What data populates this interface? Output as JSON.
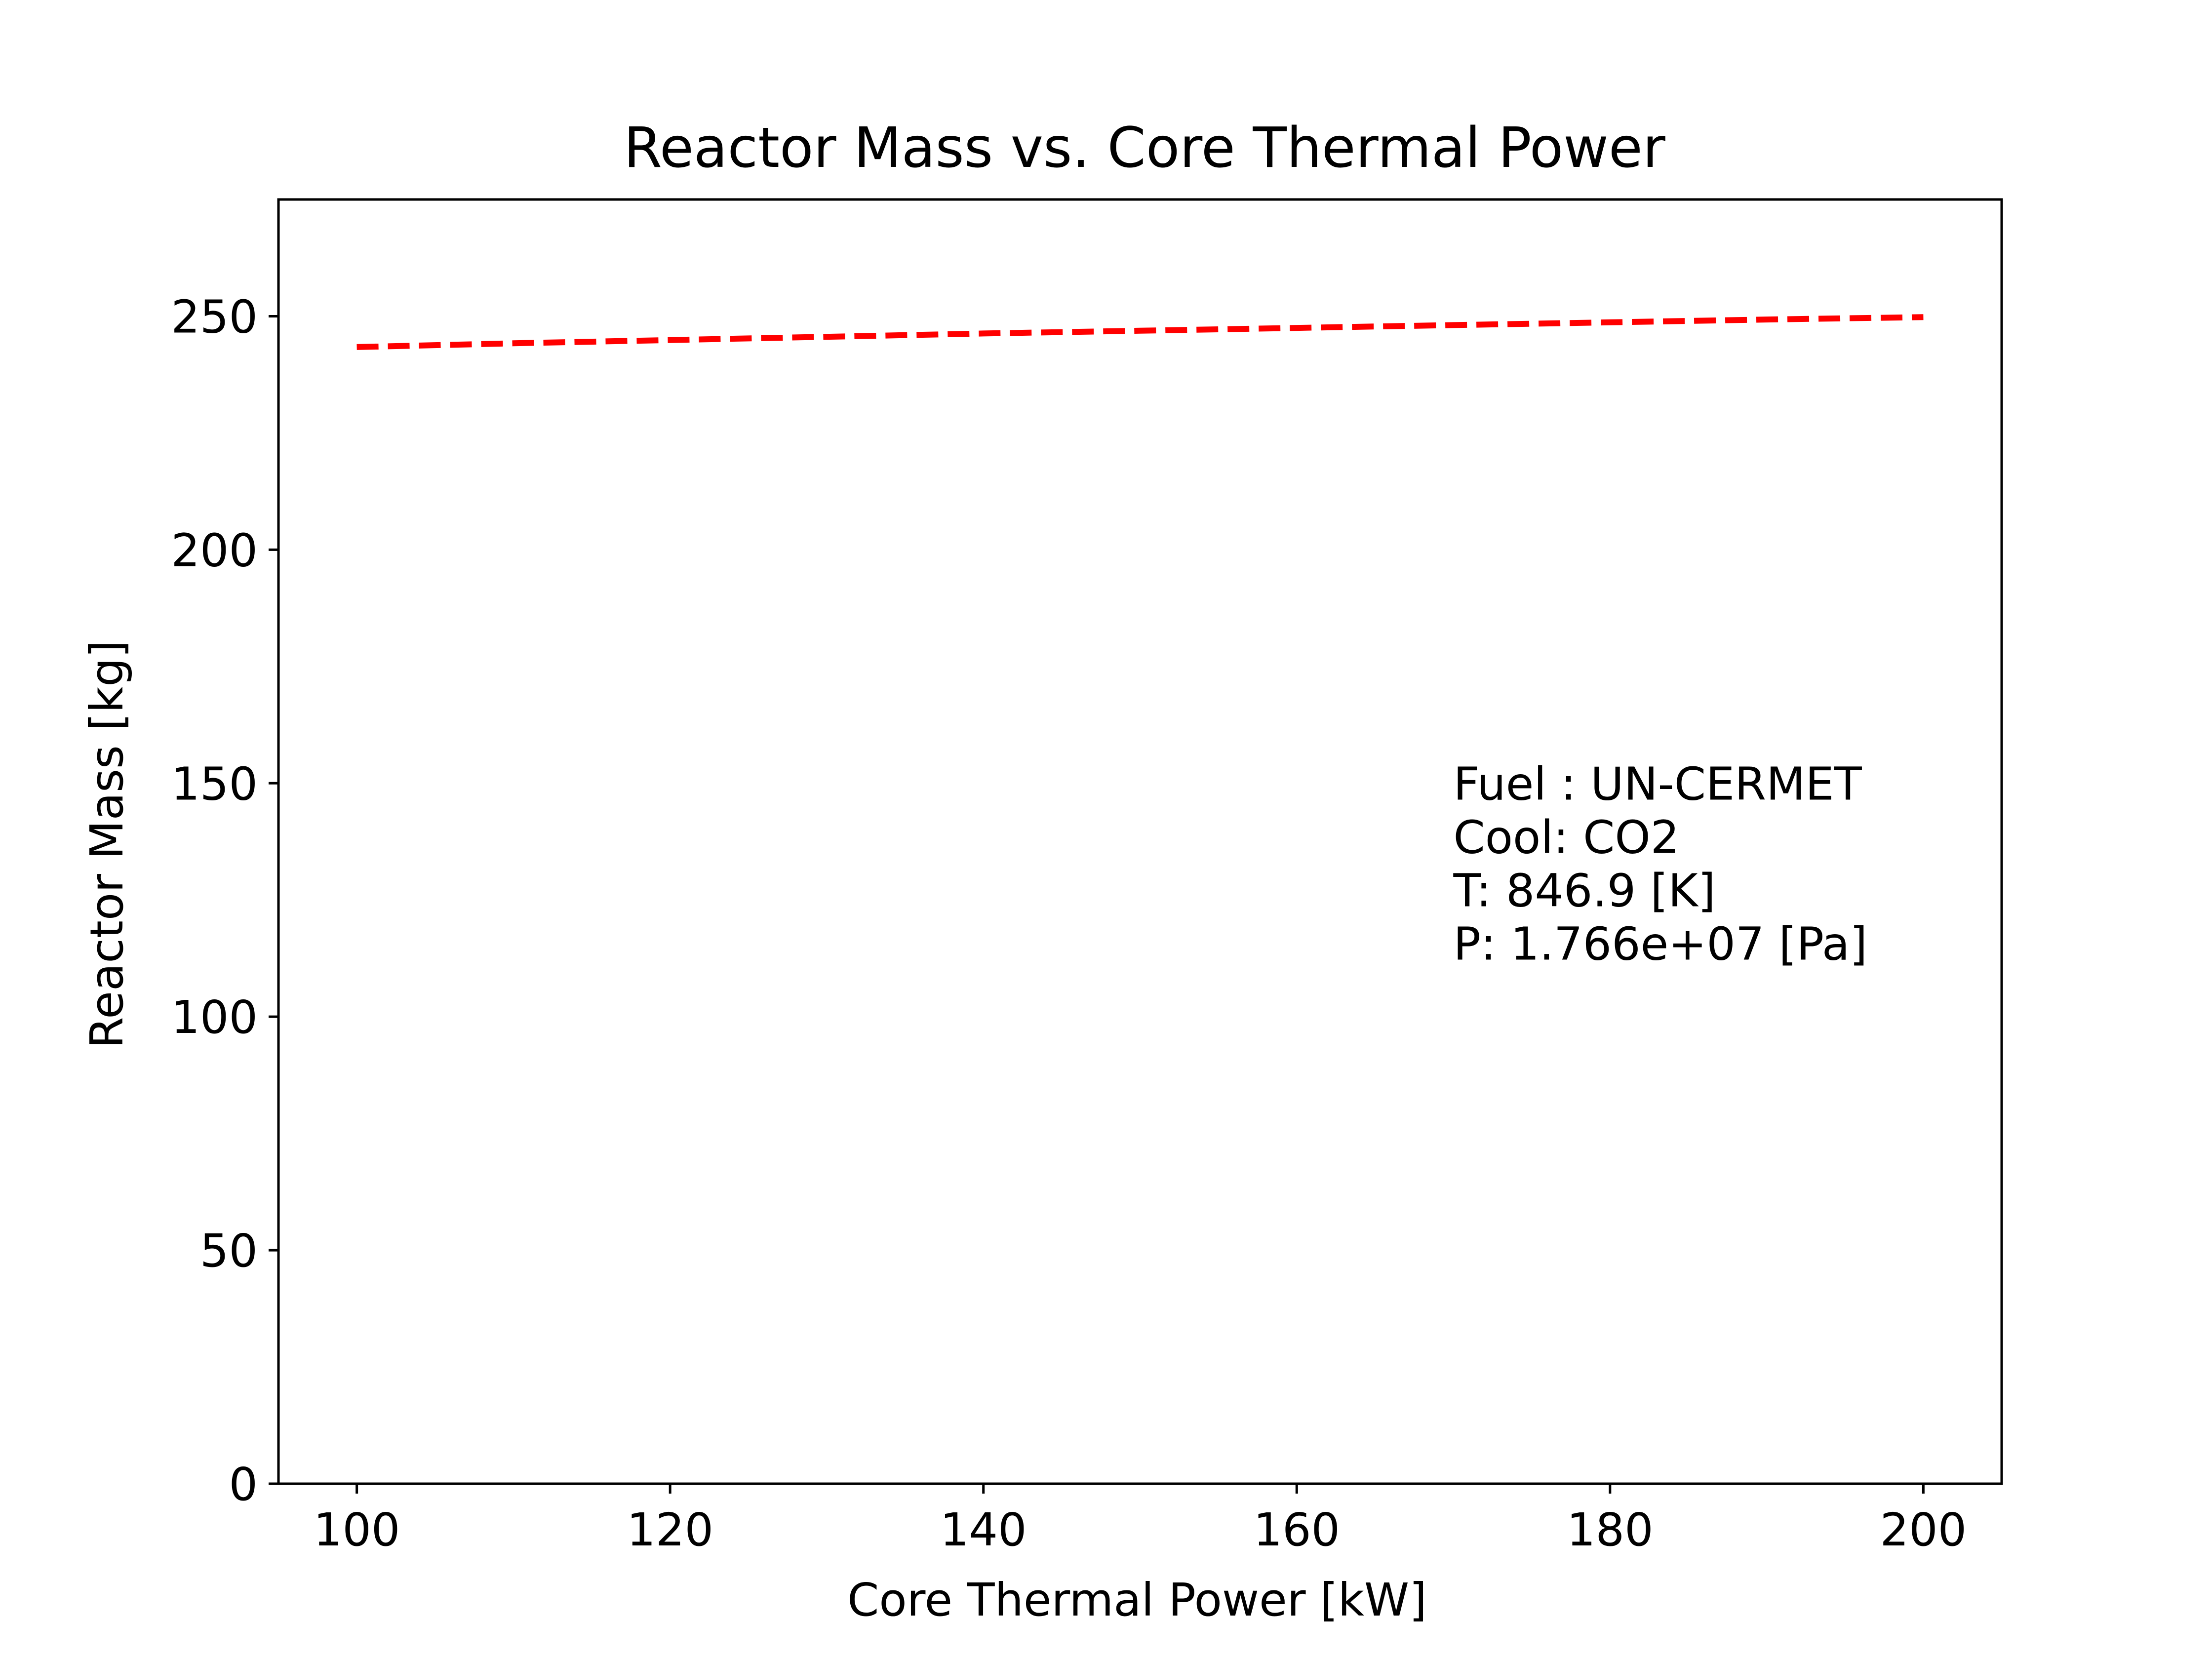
{
  "chart_data": {
    "type": "line",
    "title": "Reactor Mass vs. Core Thermal Power",
    "xlabel": "Core Thermal Power [kW]",
    "ylabel": "Reactor Mass [kg]",
    "xlim": [
      95,
      205
    ],
    "ylim": [
      0,
      275
    ],
    "xticks": [
      100,
      120,
      140,
      160,
      180,
      200
    ],
    "yticks": [
      0,
      50,
      100,
      150,
      200,
      250
    ],
    "grid": false,
    "series": [
      {
        "line_style": "dashed",
        "color": "#ff0000",
        "x": [
          100,
          110,
          120,
          130,
          140,
          150,
          160,
          170,
          180,
          190,
          200
        ],
        "y": [
          243.4,
          244.2,
          244.9,
          245.6,
          246.3,
          246.9,
          247.5,
          248.1,
          248.7,
          249.3,
          249.8
        ]
      }
    ],
    "annotation": [
      "Fuel : UN-CERMET",
      "Cool: CO2",
      "T: 846.9 [K]",
      "P: 1.766e+07 [Pa]"
    ]
  }
}
